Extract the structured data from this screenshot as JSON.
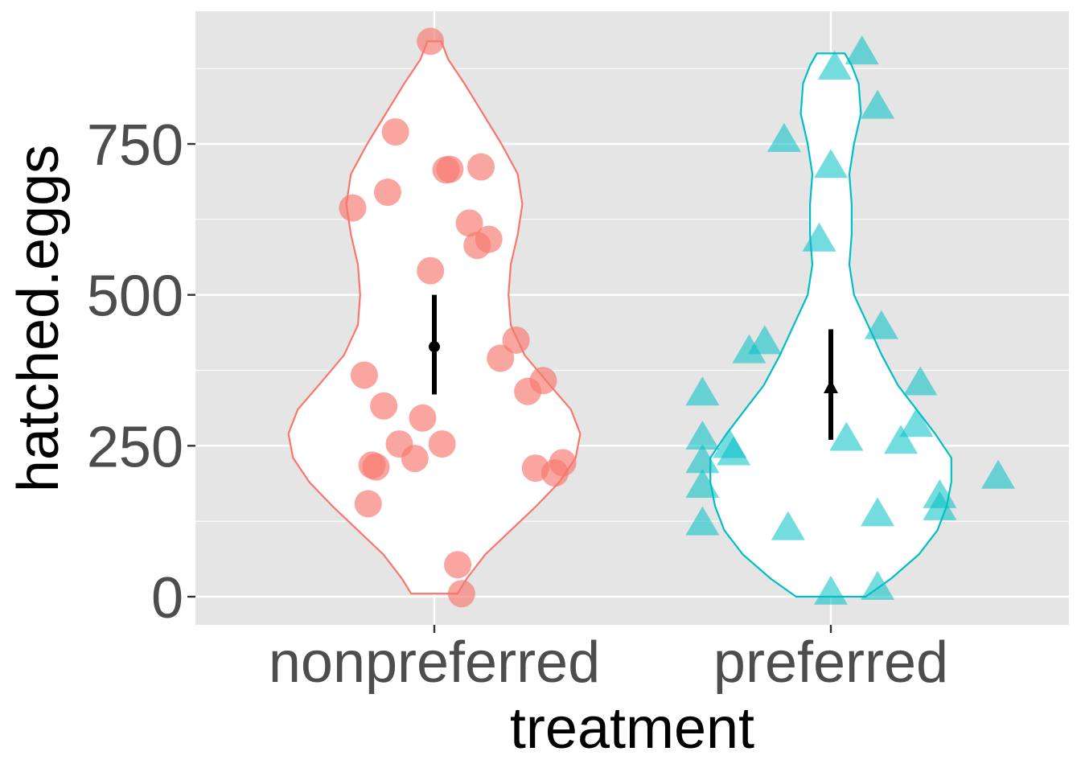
{
  "chart_data": {
    "type": "violin",
    "xlabel": "treatment",
    "ylabel": "hatched.eggs",
    "categories": [
      "nonpreferred",
      "preferred"
    ],
    "yticks": [
      0,
      250,
      500,
      750
    ],
    "ylim": [
      -45,
      965
    ],
    "grid": true,
    "legend": "none",
    "series": [
      {
        "category": "nonpreferred",
        "color": "#F8766D",
        "marker": "circle",
        "points": [
          {
            "x": -0.01,
            "y": 920
          },
          {
            "x": -0.1,
            "y": 770
          },
          {
            "x": 0.04,
            "y": 708
          },
          {
            "x": 0.03,
            "y": 707
          },
          {
            "x": 0.12,
            "y": 712
          },
          {
            "x": -0.21,
            "y": 644
          },
          {
            "x": -0.12,
            "y": 670
          },
          {
            "x": 0.09,
            "y": 619
          },
          {
            "x": 0.14,
            "y": 592
          },
          {
            "x": 0.11,
            "y": 582
          },
          {
            "x": -0.01,
            "y": 540
          },
          {
            "x": 0.21,
            "y": 425
          },
          {
            "x": 0.17,
            "y": 395
          },
          {
            "x": -0.18,
            "y": 367
          },
          {
            "x": 0.28,
            "y": 358
          },
          {
            "x": 0.24,
            "y": 340
          },
          {
            "x": -0.13,
            "y": 316
          },
          {
            "x": -0.03,
            "y": 296
          },
          {
            "x": -0.09,
            "y": 253
          },
          {
            "x": 0.02,
            "y": 253
          },
          {
            "x": -0.05,
            "y": 229
          },
          {
            "x": -0.16,
            "y": 218
          },
          {
            "x": -0.15,
            "y": 215
          },
          {
            "x": 0.33,
            "y": 222
          },
          {
            "x": 0.26,
            "y": 213
          },
          {
            "x": 0.31,
            "y": 205
          },
          {
            "x": -0.17,
            "y": 154
          },
          {
            "x": 0.06,
            "y": 53
          },
          {
            "x": 0.07,
            "y": 5
          }
        ],
        "mean": 414,
        "ci": [
          335,
          500
        ],
        "violin": [
          [
            5,
            0.1
          ],
          [
            30,
            0.14
          ],
          [
            70,
            0.22
          ],
          [
            110,
            0.33
          ],
          [
            150,
            0.44
          ],
          [
            190,
            0.54
          ],
          [
            230,
            0.61
          ],
          [
            270,
            0.63
          ],
          [
            310,
            0.59
          ],
          [
            350,
            0.5
          ],
          [
            400,
            0.39
          ],
          [
            450,
            0.33
          ],
          [
            500,
            0.32
          ],
          [
            550,
            0.33
          ],
          [
            600,
            0.36
          ],
          [
            650,
            0.38
          ],
          [
            700,
            0.36
          ],
          [
            750,
            0.29
          ],
          [
            800,
            0.21
          ],
          [
            850,
            0.13
          ],
          [
            890,
            0.06
          ],
          [
            920,
            0.03
          ]
        ]
      },
      {
        "category": "preferred",
        "color": "#00BFC4",
        "marker": "triangle",
        "points": [
          {
            "x": 0.08,
            "y": 900
          },
          {
            "x": 0.01,
            "y": 875
          },
          {
            "x": 0.12,
            "y": 810
          },
          {
            "x": -0.12,
            "y": 755
          },
          {
            "x": 0.0,
            "y": 712
          },
          {
            "x": -0.03,
            "y": 590
          },
          {
            "x": 0.13,
            "y": 445
          },
          {
            "x": -0.17,
            "y": 420
          },
          {
            "x": -0.21,
            "y": 405
          },
          {
            "x": 0.23,
            "y": 352
          },
          {
            "x": -0.33,
            "y": 335
          },
          {
            "x": 0.22,
            "y": 283
          },
          {
            "x": -0.33,
            "y": 262
          },
          {
            "x": 0.04,
            "y": 260
          },
          {
            "x": 0.18,
            "y": 255
          },
          {
            "x": -0.26,
            "y": 248
          },
          {
            "x": -0.25,
            "y": 236
          },
          {
            "x": -0.33,
            "y": 223
          },
          {
            "x": -0.33,
            "y": 182
          },
          {
            "x": 0.43,
            "y": 197
          },
          {
            "x": 0.28,
            "y": 165
          },
          {
            "x": 0.28,
            "y": 145
          },
          {
            "x": 0.12,
            "y": 135
          },
          {
            "x": -0.33,
            "y": 120
          },
          {
            "x": -0.11,
            "y": 112
          },
          {
            "x": 0.12,
            "y": 13
          },
          {
            "x": 0.0,
            "y": 5
          }
        ],
        "mean": 345,
        "ci": [
          260,
          443
        ],
        "violin": [
          [
            0,
            0.15
          ],
          [
            30,
            0.26
          ],
          [
            70,
            0.38
          ],
          [
            110,
            0.46
          ],
          [
            150,
            0.5
          ],
          [
            190,
            0.52
          ],
          [
            230,
            0.52
          ],
          [
            270,
            0.45
          ],
          [
            310,
            0.37
          ],
          [
            350,
            0.29
          ],
          [
            400,
            0.22
          ],
          [
            450,
            0.16
          ],
          [
            500,
            0.1
          ],
          [
            550,
            0.08
          ],
          [
            600,
            0.09
          ],
          [
            650,
            0.09
          ],
          [
            700,
            0.08
          ],
          [
            750,
            0.1
          ],
          [
            800,
            0.13
          ],
          [
            850,
            0.12
          ],
          [
            880,
            0.09
          ],
          [
            900,
            0.06
          ]
        ]
      }
    ]
  }
}
